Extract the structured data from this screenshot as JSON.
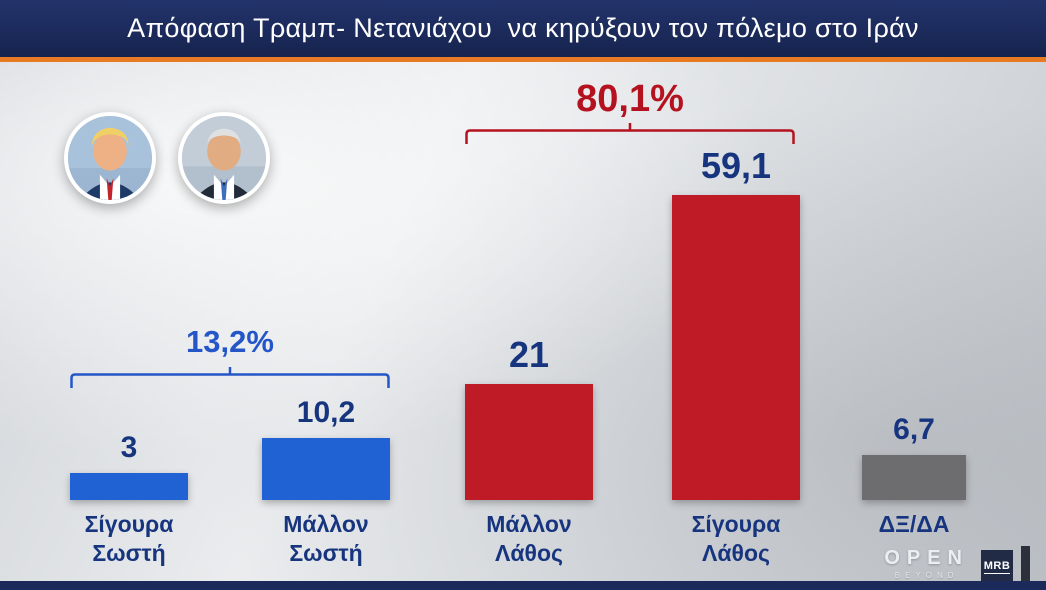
{
  "title_bar": {
    "text": "Απόφαση Τραμπ- Νετανιάχου  να κηρύξουν τον πόλεμο στο Ιράν"
  },
  "colors": {
    "title_bg": "#1b2a5a",
    "accent_orange": "#e87a24",
    "blue_bar": "#2062d4",
    "red_bar": "#bf1b26",
    "gray_bar": "#6d6d70",
    "value_text": "#17357f",
    "group_blue": "#2456c8",
    "group_red": "#b5121f"
  },
  "chart_data": {
    "type": "bar",
    "title": "Απόφαση Τραμπ- Νετανιάχου να κηρύξουν τον πόλεμο στο Ιράν",
    "categories": [
      "Σίγουρα Σωστή",
      "Μάλλον Σωστή",
      "Μάλλον Λάθος",
      "Σίγουρα Λάθος",
      "ΔΞ/ΔΑ"
    ],
    "categories_display": [
      "Σίγουρα\nΣωστή",
      "Μάλλον\nΣωστή",
      "Μάλλον\nΛάθος",
      "Σίγουρα\nΛάθος",
      "ΔΞ/ΔΑ"
    ],
    "values": [
      3,
      10.2,
      21,
      59.1,
      6.7
    ],
    "value_labels": [
      "3",
      "10,2",
      "21",
      "59,1",
      "6,7"
    ],
    "colors": [
      "#2062d4",
      "#2062d4",
      "#bf1b26",
      "#bf1b26",
      "#6d6d70"
    ],
    "groups": [
      {
        "label": "13,2%",
        "color": "#2456c8",
        "span": [
          0,
          1
        ],
        "total": 13.2
      },
      {
        "label": "80,1%",
        "color": "#b5121f",
        "span": [
          2,
          3
        ],
        "total": 80.1
      }
    ],
    "xlabel": "",
    "ylabel": "%",
    "ylim": [
      0,
      60
    ],
    "grid": false,
    "legend": false
  },
  "photos": [
    {
      "name": "Trump"
    },
    {
      "name": "Netanyahu"
    }
  ],
  "footer": {
    "open_label": "OPEN",
    "beyond_label": "BEYOND",
    "mrb_label": "MRB"
  }
}
